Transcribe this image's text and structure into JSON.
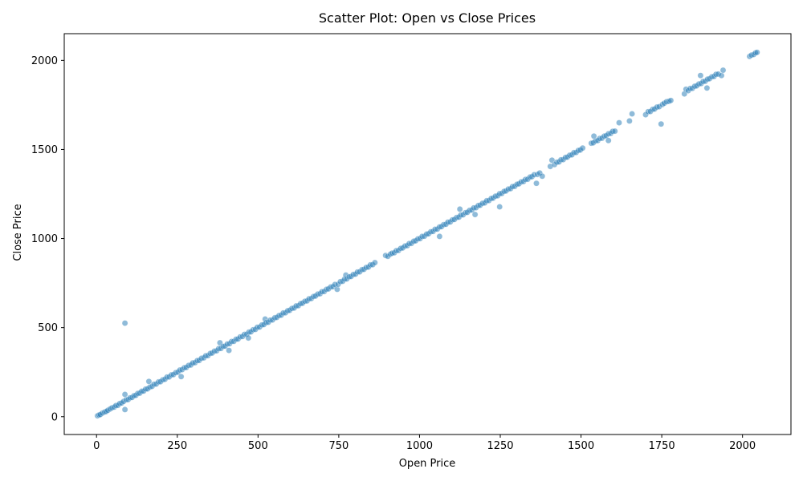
{
  "chart_data": {
    "type": "scatter",
    "title": "Scatter Plot: Open vs Close Prices",
    "xlabel": "Open Price",
    "ylabel": "Close Price",
    "xlim": [
      -100,
      2150
    ],
    "ylim": [
      -100,
      2150
    ],
    "xticks": [
      0,
      250,
      500,
      750,
      1000,
      1250,
      1500,
      1750,
      2000
    ],
    "yticks": [
      0,
      500,
      1000,
      1500,
      2000
    ],
    "grid": false,
    "legend": "none",
    "point_color": "#1f77b4",
    "point_opacity": 0.5,
    "series": [
      {
        "points": [
          [
            3,
            5
          ],
          [
            8,
            10
          ],
          [
            12,
            12
          ],
          [
            18,
            20
          ],
          [
            25,
            26
          ],
          [
            30,
            29
          ],
          [
            35,
            36
          ],
          [
            42,
            43
          ],
          [
            48,
            50
          ],
          [
            55,
            54
          ],
          [
            60,
            63
          ],
          [
            66,
            64
          ],
          [
            72,
            74
          ],
          [
            78,
            77
          ],
          [
            84,
            86
          ],
          [
            88,
            125
          ],
          [
            88,
            40
          ],
          [
            88,
            525
          ],
          [
            92,
            95
          ],
          [
            98,
            96
          ],
          [
            104,
            106
          ],
          [
            110,
            108
          ],
          [
            116,
            118
          ],
          [
            122,
            120
          ],
          [
            128,
            131
          ],
          [
            134,
            132
          ],
          [
            140,
            143
          ],
          [
            146,
            144
          ],
          [
            152,
            155
          ],
          [
            158,
            156
          ],
          [
            162,
            198
          ],
          [
            165,
            166
          ],
          [
            172,
            170
          ],
          [
            178,
            182
          ],
          [
            185,
            183
          ],
          [
            192,
            195
          ],
          [
            198,
            196
          ],
          [
            205,
            207
          ],
          [
            212,
            210
          ],
          [
            218,
            222
          ],
          [
            225,
            223
          ],
          [
            232,
            235
          ],
          [
            238,
            236
          ],
          [
            245,
            247
          ],
          [
            252,
            250
          ],
          [
            258,
            262
          ],
          [
            262,
            225
          ],
          [
            265,
            264
          ],
          [
            272,
            275
          ],
          [
            278,
            276
          ],
          [
            285,
            288
          ],
          [
            292,
            290
          ],
          [
            298,
            302
          ],
          [
            305,
            303
          ],
          [
            312,
            315
          ],
          [
            318,
            316
          ],
          [
            325,
            328
          ],
          [
            332,
            330
          ],
          [
            338,
            342
          ],
          [
            345,
            343
          ],
          [
            352,
            355
          ],
          [
            358,
            357
          ],
          [
            365,
            368
          ],
          [
            372,
            370
          ],
          [
            378,
            382
          ],
          [
            382,
            415
          ],
          [
            385,
            383
          ],
          [
            392,
            395
          ],
          [
            398,
            396
          ],
          [
            405,
            408
          ],
          [
            410,
            372
          ],
          [
            412,
            410
          ],
          [
            418,
            422
          ],
          [
            425,
            423
          ],
          [
            432,
            435
          ],
          [
            438,
            436
          ],
          [
            445,
            448
          ],
          [
            452,
            450
          ],
          [
            458,
            462
          ],
          [
            465,
            463
          ],
          [
            470,
            442
          ],
          [
            472,
            475
          ],
          [
            478,
            476
          ],
          [
            485,
            488
          ],
          [
            492,
            490
          ],
          [
            498,
            502
          ],
          [
            505,
            503
          ],
          [
            512,
            515
          ],
          [
            518,
            517
          ],
          [
            522,
            548
          ],
          [
            525,
            528
          ],
          [
            532,
            530
          ],
          [
            538,
            542
          ],
          [
            545,
            543
          ],
          [
            552,
            555
          ],
          [
            558,
            557
          ],
          [
            565,
            568
          ],
          [
            572,
            570
          ],
          [
            578,
            582
          ],
          [
            585,
            583
          ],
          [
            592,
            595
          ],
          [
            598,
            597
          ],
          [
            605,
            608
          ],
          [
            612,
            610
          ],
          [
            618,
            622
          ],
          [
            625,
            623
          ],
          [
            632,
            635
          ],
          [
            638,
            637
          ],
          [
            645,
            648
          ],
          [
            652,
            650
          ],
          [
            658,
            662
          ],
          [
            665,
            663
          ],
          [
            672,
            675
          ],
          [
            678,
            677
          ],
          [
            685,
            688
          ],
          [
            692,
            690
          ],
          [
            698,
            702
          ],
          [
            705,
            703
          ],
          [
            712,
            715
          ],
          [
            718,
            717
          ],
          [
            725,
            728
          ],
          [
            732,
            730
          ],
          [
            738,
            742
          ],
          [
            745,
            715
          ],
          [
            748,
            743
          ],
          [
            755,
            758
          ],
          [
            762,
            760
          ],
          [
            768,
            772
          ],
          [
            772,
            795
          ],
          [
            775,
            773
          ],
          [
            782,
            785
          ],
          [
            788,
            787
          ],
          [
            795,
            798
          ],
          [
            802,
            800
          ],
          [
            808,
            812
          ],
          [
            815,
            813
          ],
          [
            822,
            825
          ],
          [
            828,
            827
          ],
          [
            835,
            838
          ],
          [
            842,
            840
          ],
          [
            848,
            852
          ],
          [
            855,
            853
          ],
          [
            862,
            865
          ],
          [
            895,
            905
          ],
          [
            902,
            900
          ],
          [
            910,
            912
          ],
          [
            915,
            918
          ],
          [
            922,
            920
          ],
          [
            928,
            932
          ],
          [
            935,
            933
          ],
          [
            942,
            945
          ],
          [
            948,
            947
          ],
          [
            955,
            958
          ],
          [
            962,
            960
          ],
          [
            968,
            972
          ],
          [
            975,
            973
          ],
          [
            982,
            985
          ],
          [
            988,
            987
          ],
          [
            995,
            998
          ],
          [
            1002,
            1000
          ],
          [
            1008,
            1012
          ],
          [
            1015,
            1013
          ],
          [
            1022,
            1025
          ],
          [
            1028,
            1027
          ],
          [
            1035,
            1038
          ],
          [
            1042,
            1040
          ],
          [
            1048,
            1052
          ],
          [
            1055,
            1053
          ],
          [
            1062,
            1065
          ],
          [
            1062,
            1012
          ],
          [
            1068,
            1067
          ],
          [
            1075,
            1078
          ],
          [
            1082,
            1080
          ],
          [
            1088,
            1092
          ],
          [
            1095,
            1093
          ],
          [
            1102,
            1105
          ],
          [
            1108,
            1107
          ],
          [
            1115,
            1118
          ],
          [
            1122,
            1120
          ],
          [
            1125,
            1165
          ],
          [
            1128,
            1132
          ],
          [
            1135,
            1133
          ],
          [
            1142,
            1145
          ],
          [
            1148,
            1147
          ],
          [
            1155,
            1158
          ],
          [
            1162,
            1160
          ],
          [
            1168,
            1172
          ],
          [
            1172,
            1135
          ],
          [
            1175,
            1173
          ],
          [
            1182,
            1185
          ],
          [
            1188,
            1187
          ],
          [
            1195,
            1198
          ],
          [
            1202,
            1200
          ],
          [
            1208,
            1212
          ],
          [
            1215,
            1213
          ],
          [
            1222,
            1225
          ],
          [
            1228,
            1227
          ],
          [
            1235,
            1238
          ],
          [
            1242,
            1240
          ],
          [
            1248,
            1178
          ],
          [
            1248,
            1252
          ],
          [
            1255,
            1253
          ],
          [
            1262,
            1265
          ],
          [
            1268,
            1267
          ],
          [
            1275,
            1278
          ],
          [
            1282,
            1280
          ],
          [
            1288,
            1292
          ],
          [
            1295,
            1293
          ],
          [
            1302,
            1305
          ],
          [
            1308,
            1307
          ],
          [
            1315,
            1318
          ],
          [
            1322,
            1320
          ],
          [
            1328,
            1332
          ],
          [
            1335,
            1333
          ],
          [
            1342,
            1345
          ],
          [
            1348,
            1347
          ],
          [
            1355,
            1358
          ],
          [
            1362,
            1310
          ],
          [
            1365,
            1360
          ],
          [
            1372,
            1368
          ],
          [
            1380,
            1350
          ],
          [
            1405,
            1405
          ],
          [
            1410,
            1440
          ],
          [
            1418,
            1415
          ],
          [
            1425,
            1428
          ],
          [
            1432,
            1430
          ],
          [
            1438,
            1442
          ],
          [
            1445,
            1443
          ],
          [
            1452,
            1455
          ],
          [
            1458,
            1457
          ],
          [
            1465,
            1468
          ],
          [
            1472,
            1470
          ],
          [
            1478,
            1482
          ],
          [
            1485,
            1483
          ],
          [
            1492,
            1495
          ],
          [
            1498,
            1497
          ],
          [
            1505,
            1508
          ],
          [
            1532,
            1535
          ],
          [
            1538,
            1537
          ],
          [
            1540,
            1575
          ],
          [
            1545,
            1548
          ],
          [
            1552,
            1550
          ],
          [
            1558,
            1562
          ],
          [
            1565,
            1563
          ],
          [
            1572,
            1575
          ],
          [
            1578,
            1577
          ],
          [
            1585,
            1550
          ],
          [
            1585,
            1588
          ],
          [
            1592,
            1590
          ],
          [
            1598,
            1602
          ],
          [
            1605,
            1603
          ],
          [
            1618,
            1650
          ],
          [
            1650,
            1660
          ],
          [
            1658,
            1700
          ],
          [
            1700,
            1695
          ],
          [
            1708,
            1712
          ],
          [
            1715,
            1713
          ],
          [
            1722,
            1725
          ],
          [
            1728,
            1727
          ],
          [
            1735,
            1738
          ],
          [
            1742,
            1740
          ],
          [
            1748,
            1643
          ],
          [
            1752,
            1752
          ],
          [
            1758,
            1760
          ],
          [
            1765,
            1768
          ],
          [
            1772,
            1770
          ],
          [
            1778,
            1775
          ],
          [
            1820,
            1812
          ],
          [
            1825,
            1838
          ],
          [
            1832,
            1830
          ],
          [
            1838,
            1842
          ],
          [
            1845,
            1843
          ],
          [
            1852,
            1855
          ],
          [
            1858,
            1857
          ],
          [
            1865,
            1868
          ],
          [
            1870,
            1915
          ],
          [
            1872,
            1870
          ],
          [
            1878,
            1882
          ],
          [
            1885,
            1883
          ],
          [
            1890,
            1845
          ],
          [
            1892,
            1895
          ],
          [
            1898,
            1897
          ],
          [
            1905,
            1908
          ],
          [
            1912,
            1910
          ],
          [
            1918,
            1922
          ],
          [
            1925,
            1923
          ],
          [
            1935,
            1915
          ],
          [
            1940,
            1945
          ],
          [
            2022,
            2022
          ],
          [
            2028,
            2030
          ],
          [
            2035,
            2033
          ],
          [
            2040,
            2042
          ],
          [
            2045,
            2045
          ]
        ]
      }
    ]
  }
}
